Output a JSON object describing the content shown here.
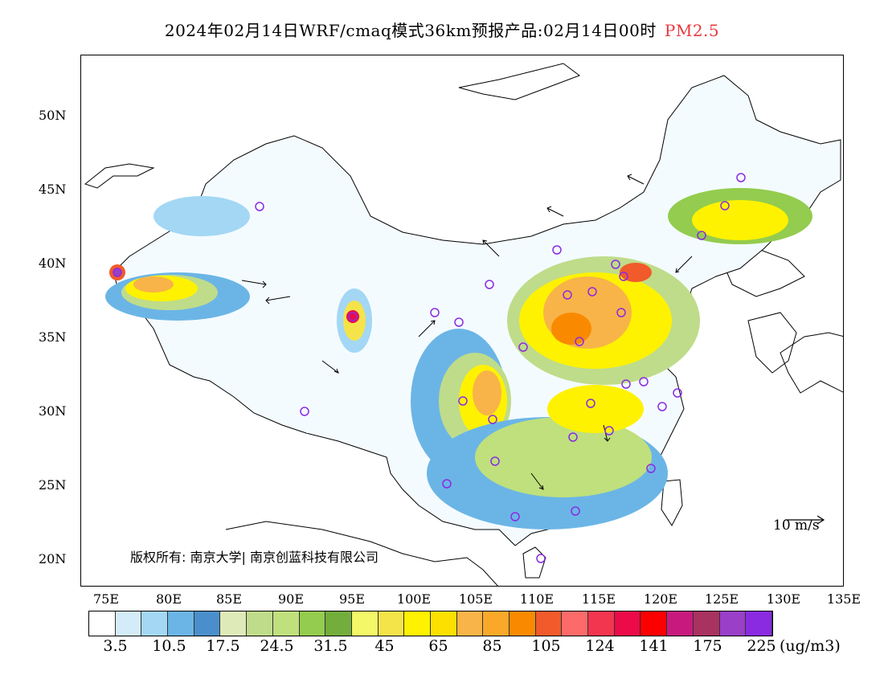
{
  "title": {
    "main": "2024年02月14日WRF/cmaq模式36km预报产品:02月14日00时",
    "species": "PM2.5"
  },
  "axes": {
    "lat_labels": [
      "50N",
      "45N",
      "40N",
      "35N",
      "30N",
      "25N",
      "20N"
    ],
    "lon_labels": [
      "75E",
      "80E",
      "85E",
      "90E",
      "95E",
      "100E",
      "105E",
      "110E",
      "115E",
      "120E",
      "125E",
      "130E",
      "135E"
    ]
  },
  "copyright": "版权所有: 南京大学| 南京创蓝科技有限公司",
  "wind_reference": "10 m/s",
  "colorbar": {
    "colors": [
      "#ffffff",
      "#d4ecfa",
      "#a3d7f4",
      "#6bb5e6",
      "#4a8fcb",
      "#dfeab9",
      "#bfdc8a",
      "#bfe07c",
      "#93cc4e",
      "#73ad3c",
      "#f3f768",
      "#f5e34a",
      "#fff200",
      "#fbe000",
      "#f8b448",
      "#f9a82a",
      "#f98a00",
      "#f15a2a",
      "#fc6a6a",
      "#f2364f",
      "#ec0a48",
      "#fc0000",
      "#c81a7e",
      "#a83260",
      "#9a3fc8",
      "#8a2be2"
    ],
    "labels": [
      "3.5",
      "10.5",
      "17.5",
      "24.5",
      "31.5",
      "45",
      "65",
      "85",
      "105",
      "124",
      "141",
      "175",
      "225"
    ],
    "unit": "(ug/m3)"
  }
}
